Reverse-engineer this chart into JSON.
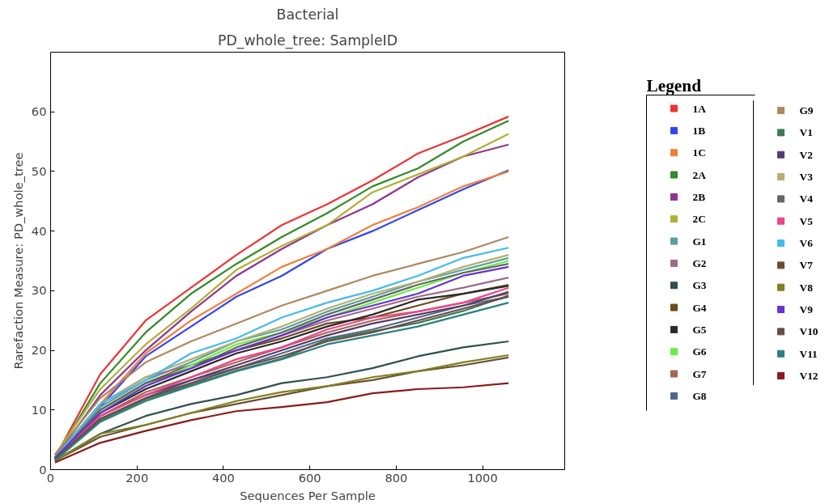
{
  "chart_data": {
    "type": "line",
    "title": "Bacterial",
    "subtitle": "PD_whole_tree: SampleID",
    "xlabel": "Sequences Per Sample",
    "ylabel": "Rarefaction Measure: PD_whole_tree",
    "legend_title": "Legend",
    "x": [
      10,
      115,
      220,
      325,
      430,
      535,
      640,
      745,
      850,
      955,
      1060
    ],
    "xlim": [
      0,
      1190
    ],
    "xticks": [
      0,
      200,
      400,
      600,
      800,
      1000
    ],
    "ylim": [
      0,
      70
    ],
    "yticks": [
      0,
      10,
      20,
      30,
      40,
      50,
      60
    ],
    "grid": false,
    "legend": "right",
    "marker": "none",
    "line_style": "solid",
    "series": [
      {
        "name": "1A",
        "color": "#ee3333",
        "values": [
          2,
          16,
          25,
          30.5,
          36,
          41,
          44.5,
          48.5,
          53,
          56,
          59.2
        ]
      },
      {
        "name": "1B",
        "color": "#3344ee",
        "values": [
          2,
          10.5,
          19,
          24,
          29,
          32.5,
          37,
          40,
          43.5,
          47,
          50.2
        ]
      },
      {
        "name": "1C",
        "color": "#f07f3a",
        "values": [
          2,
          11,
          19.5,
          25,
          29.5,
          34,
          37,
          41,
          44,
          47.5,
          50
        ]
      },
      {
        "name": "2A",
        "color": "#338a2a",
        "values": [
          2,
          14.5,
          23,
          29.5,
          34.5,
          39,
          43,
          47.5,
          50.5,
          55,
          58.5
        ]
      },
      {
        "name": "2B",
        "color": "#8e3590",
        "values": [
          2,
          12.5,
          20,
          26.5,
          32.5,
          37,
          41,
          44.5,
          49,
          52.5,
          54.5
        ]
      },
      {
        "name": "2C",
        "color": "#b0b035",
        "values": [
          2.5,
          13.5,
          21,
          27,
          33.5,
          37.5,
          41,
          46.5,
          49.5,
          52.5,
          56.3
        ]
      },
      {
        "name": "G1",
        "color": "#5a9ea0",
        "values": [
          2,
          10.5,
          15,
          18,
          21.5,
          23.5,
          26.5,
          29,
          31.5,
          33.5,
          35.5
        ]
      },
      {
        "name": "G2",
        "color": "#a06a88",
        "values": [
          2,
          11,
          15.5,
          17.5,
          20,
          22.5,
          25,
          27,
          29,
          30.5,
          32.2
        ]
      },
      {
        "name": "G3",
        "color": "#2f4f4f",
        "values": [
          1.5,
          6,
          9,
          11,
          12.5,
          14.5,
          15.5,
          17,
          19,
          20.5,
          21.5
        ]
      },
      {
        "name": "G4",
        "color": "#6b4a1a",
        "values": [
          2,
          10,
          14.5,
          17.5,
          20,
          22,
          24.5,
          25.5,
          27.5,
          29.5,
          31
        ]
      },
      {
        "name": "G5",
        "color": "#2a2a2a",
        "values": [
          1.8,
          9.5,
          13.5,
          16.5,
          19.5,
          21.5,
          24,
          26,
          28.5,
          29.5,
          30.8
        ]
      },
      {
        "name": "G6",
        "color": "#66ee44",
        "values": [
          2,
          10,
          14,
          17.5,
          21,
          23,
          25.5,
          28,
          30.5,
          33,
          35
        ]
      },
      {
        "name": "G7",
        "color": "#a86655",
        "values": [
          2,
          9,
          13,
          15.5,
          18,
          20.5,
          23,
          25,
          26.5,
          28,
          29.5
        ]
      },
      {
        "name": "G8",
        "color": "#4f6a88",
        "values": [
          1.8,
          8.5,
          12,
          15,
          17,
          19.5,
          22,
          23.5,
          25.5,
          27.5,
          29
        ]
      },
      {
        "name": "G9",
        "color": "#b08860",
        "values": [
          2.5,
          12,
          18,
          21.5,
          24.5,
          27.5,
          30,
          32.5,
          34.5,
          36.5,
          39
        ]
      },
      {
        "name": "V1",
        "color": "#3f7a55",
        "values": [
          1.6,
          8.2,
          11.8,
          14.2,
          16.6,
          18.6,
          21.8,
          23.2,
          24.6,
          26.6,
          29.2
        ]
      },
      {
        "name": "V2",
        "color": "#553d6e",
        "values": [
          1.8,
          9,
          12.5,
          15,
          17.5,
          20,
          22.5,
          24.5,
          26,
          27.5,
          29.8
        ]
      },
      {
        "name": "V3",
        "color": "#b5b070",
        "values": [
          2,
          11,
          15.5,
          18.5,
          21.5,
          24,
          27,
          29.5,
          31.5,
          34,
          36
        ]
      },
      {
        "name": "V4",
        "color": "#666666",
        "values": [
          2,
          10,
          14.5,
          17,
          20.5,
          23,
          26,
          28.5,
          31,
          33,
          34.5
        ]
      },
      {
        "name": "V5",
        "color": "#ee4488",
        "values": [
          2,
          9,
          12.5,
          15.5,
          18.5,
          20.5,
          23.5,
          25.5,
          26.5,
          28,
          30.5
        ]
      },
      {
        "name": "V6",
        "color": "#44bbee",
        "values": [
          2,
          11,
          15,
          19.5,
          22,
          25.5,
          28,
          30,
          32.5,
          35.5,
          37.2
        ]
      },
      {
        "name": "V7",
        "color": "#6b5030",
        "values": [
          1.5,
          5.5,
          7.5,
          9.5,
          11,
          12.5,
          14,
          15,
          16.5,
          17.5,
          18.8
        ]
      },
      {
        "name": "V8",
        "color": "#808020",
        "values": [
          1.5,
          6,
          7.5,
          9.5,
          11.5,
          13,
          14,
          15.5,
          16.5,
          18,
          19.2
        ]
      },
      {
        "name": "V9",
        "color": "#6633cc",
        "values": [
          2,
          9.5,
          14,
          17,
          20,
          22.5,
          25.5,
          27.5,
          29.5,
          32.5,
          34
        ]
      },
      {
        "name": "V10",
        "color": "#6b4a4a",
        "values": [
          1.8,
          8.5,
          12,
          14.5,
          17,
          19,
          21.5,
          23,
          25,
          27,
          29
        ]
      },
      {
        "name": "V11",
        "color": "#2a8080",
        "values": [
          1.5,
          8,
          11.5,
          14,
          16.5,
          18.5,
          21,
          22.5,
          24,
          26,
          28
        ]
      },
      {
        "name": "V12",
        "color": "#8b1a1a",
        "values": [
          1.2,
          4.5,
          6.5,
          8.3,
          9.8,
          10.5,
          11.3,
          12.8,
          13.5,
          13.8,
          14.5
        ]
      }
    ]
  }
}
